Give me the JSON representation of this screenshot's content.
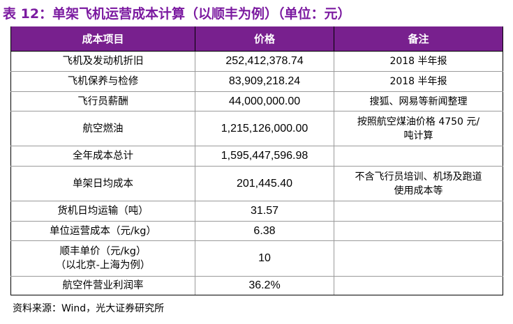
{
  "title": "表 12：单架飞机运营成本计算（以顺丰为例）（单位：元）",
  "headers": [
    "成本项目",
    "价格",
    "备注"
  ],
  "rows": [
    {
      "item": "飞机及发动机折旧",
      "price": "252,412,378.74",
      "note": "2018 半年报"
    },
    {
      "item": "飞机保养与检修",
      "price": "83,909,218.24",
      "note": "2018 半年报"
    },
    {
      "item": "飞行员薪酬",
      "price": "44,000,000.00",
      "note": "搜狐、网易等新闻整理"
    },
    {
      "item": "航空燃油",
      "price": "1,215,126,000.00",
      "note": "按照航空煤油价格 4750 元/\n吨计算"
    },
    {
      "item": "全年成本总计",
      "price": "1,595,447,596.98",
      "note": ""
    },
    {
      "item": "单架日均成本",
      "price": "201,445.40",
      "note": "不含飞行员培训、机场及跑道\n使用成本等"
    },
    {
      "item": "货机日均运输（吨）",
      "price": "31.57",
      "note": ""
    },
    {
      "item": "单位运营成本（元/kg）",
      "price": "6.38",
      "note": ""
    },
    {
      "item": "顺丰单价（元/kg）\n（以北京-上海为例）",
      "price": "10",
      "note": ""
    },
    {
      "item": "航空件营业利润率",
      "price": "36.2%",
      "note": ""
    }
  ],
  "source": "资料来源：Wind，光大证券研究所"
}
